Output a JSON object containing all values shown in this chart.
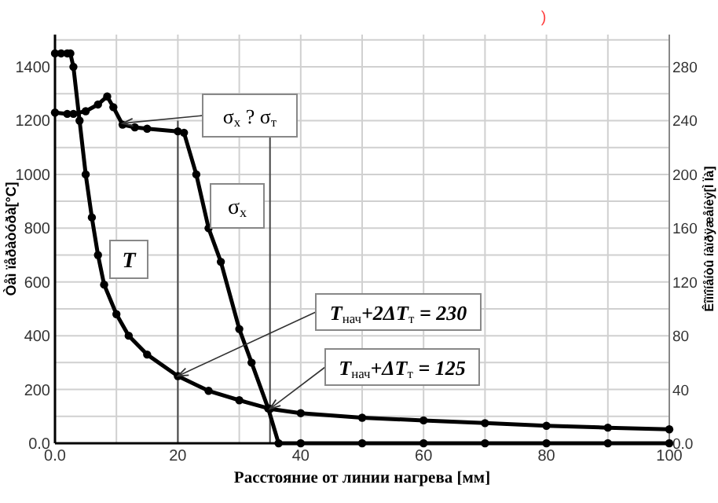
{
  "chart_data": {
    "type": "line",
    "xlabel": "Расстояние от линии нагрева [мм]",
    "ylabel": "Òåì ïåðàòóðà[°C]",
    "y2label": "Êîìïîíåíòû íàïðÿæåíèÿ[Ì Ïà]",
    "series": [
      {
        "name": "T",
        "color": "#000000",
        "x": [
          0,
          1,
          2,
          2.5,
          3,
          4,
          5,
          6,
          7,
          8,
          10,
          12,
          15,
          20,
          25,
          30,
          35,
          40,
          50,
          60,
          70,
          80,
          90,
          100
        ],
        "values": [
          1450,
          1450,
          1450,
          1450,
          1400,
          1200,
          1000,
          840,
          700,
          590,
          480,
          400,
          330,
          250,
          195,
          160,
          128,
          112,
          95,
          85,
          75,
          65,
          58,
          52
        ]
      },
      {
        "name": "σ$_{x}$",
        "color": "#000000",
        "axis": "y2",
        "x": [
          0,
          2,
          3,
          5,
          7,
          8.5,
          9.5,
          11,
          13,
          15,
          20,
          21,
          23,
          25,
          27,
          30,
          32,
          34.7,
          36.4,
          40,
          50,
          60,
          70,
          80,
          90,
          100
        ],
        "values": [
          246,
          245,
          245,
          247,
          252,
          258,
          250,
          237,
          235,
          234,
          232,
          231,
          200,
          160,
          135,
          85,
          60,
          26,
          0,
          0,
          0,
          0,
          0,
          0,
          0,
          0
        ]
      }
    ],
    "xlim": [
      0,
      100
    ],
    "xticks": [
      {
        "value": 0,
        "label": "0.0"
      },
      {
        "value": 10,
        "label": null
      },
      20,
      {
        "value": 30,
        "label": null
      },
      40,
      {
        "value": 50,
        "label": null
      },
      60,
      {
        "value": 70,
        "label": null
      },
      80,
      {
        "value": 90,
        "label": null
      },
      100
    ],
    "ylim": [
      0,
      1520
    ],
    "yticks": [
      {
        "value": 0,
        "label": "0.0"
      },
      {
        "value": 100,
        "label": null
      },
      200,
      {
        "value": 300,
        "label": null
      },
      400,
      {
        "value": 500,
        "label": null
      },
      600,
      {
        "value": 700,
        "label": null
      },
      800,
      {
        "value": 900,
        "label": null
      },
      1000,
      {
        "value": 1100,
        "label": null
      },
      1200,
      {
        "value": 1300,
        "label": null
      },
      1400,
      {
        "value": 1500,
        "label": null
      }
    ],
    "y2lim": [
      0,
      304
    ],
    "y2ticks": [
      {
        "value": 0,
        "label": "0.0"
      },
      40,
      80,
      120,
      160,
      200,
      240,
      280
    ],
    "ref_lines": [
      {
        "axis": "x",
        "value": 20
      },
      {
        "axis": "x",
        "value": 35
      }
    ],
    "annotations": [
      {
        "text": "σ$_{x}$ ? σ$_{т}$",
        "x": 11,
        "y": 1190
      },
      {
        "text": "T$_{нач}$+2ΔT$_{т}$ = 230",
        "x": 20,
        "y": 250
      },
      {
        "text": "T$_{нач}$+ΔT$_{т}$ = 125",
        "x": 35,
        "y": 128
      },
      ")"
    ],
    "grid": true,
    "marker": "circle",
    "line_style": "solid"
  }
}
